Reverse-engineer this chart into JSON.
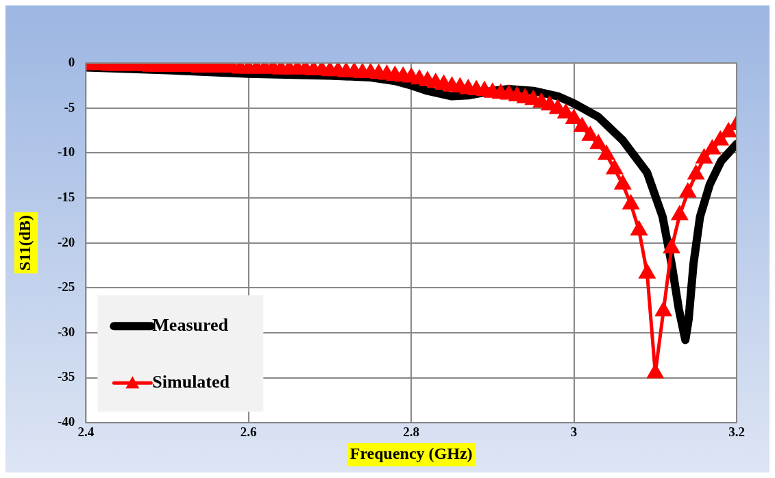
{
  "chart_data": {
    "type": "line",
    "xlabel": "Frequency (GHz)",
    "ylabel": "S11(dB)",
    "xlim": [
      2.4,
      3.2
    ],
    "xticks": [
      2.4,
      2.6,
      2.8,
      3,
      3.2
    ],
    "ylim": [
      -40,
      0
    ],
    "yticks": [
      -40,
      -35,
      -30,
      -25,
      -20,
      -15,
      -10,
      -5,
      0
    ],
    "grid": true,
    "legend": "bottom left",
    "series": [
      {
        "name": "Measured",
        "color": "#000000",
        "marker": "none",
        "x": [
          2.4,
          2.5,
          2.6,
          2.7,
          2.75,
          2.78,
          2.8,
          2.82,
          2.85,
          2.87,
          2.9,
          2.92,
          2.95,
          2.98,
          3.0,
          3.03,
          3.06,
          3.09,
          3.109,
          3.12,
          3.129,
          3.137,
          3.141,
          3.147,
          3.155,
          3.167,
          3.181,
          3.196,
          3.2
        ],
        "values": [
          -0.5,
          -0.8,
          -1.2,
          -1.4,
          -1.6,
          -2.0,
          -2.5,
          -3.1,
          -3.7,
          -3.6,
          -3.1,
          -2.9,
          -3.1,
          -3.7,
          -4.5,
          -6.0,
          -8.6,
          -12.2,
          -17.1,
          -22.3,
          -27.4,
          -30.8,
          -28.5,
          -22.3,
          -17.1,
          -13.5,
          -10.9,
          -9.4,
          -9.0
        ]
      },
      {
        "name": "Simulated",
        "color": "#ff0000",
        "marker": "triangle",
        "x": [
          2.4,
          2.41,
          2.42,
          2.43,
          2.44,
          2.45,
          2.46,
          2.47,
          2.48,
          2.49,
          2.5,
          2.51,
          2.52,
          2.53,
          2.54,
          2.55,
          2.56,
          2.57,
          2.58,
          2.59,
          2.6,
          2.61,
          2.62,
          2.63,
          2.64,
          2.65,
          2.66,
          2.67,
          2.68,
          2.69,
          2.7,
          2.71,
          2.72,
          2.73,
          2.74,
          2.75,
          2.76,
          2.77,
          2.78,
          2.79,
          2.8,
          2.81,
          2.82,
          2.83,
          2.84,
          2.85,
          2.86,
          2.87,
          2.88,
          2.89,
          2.9,
          2.91,
          2.92,
          2.93,
          2.94,
          2.95,
          2.96,
          2.97,
          2.98,
          2.99,
          3.0,
          3.01,
          3.02,
          3.03,
          3.04,
          3.05,
          3.06,
          3.07,
          3.08,
          3.09,
          3.1,
          3.11,
          3.12,
          3.13,
          3.14,
          3.15,
          3.16,
          3.17,
          3.18,
          3.19,
          3.2
        ],
        "values": [
          -0.2,
          -0.2,
          -0.2,
          -0.3,
          -0.3,
          -0.3,
          -0.3,
          -0.3,
          -0.4,
          -0.4,
          -0.4,
          -0.4,
          -0.4,
          -0.4,
          -0.5,
          -0.5,
          -0.5,
          -0.5,
          -0.5,
          -0.6,
          -0.6,
          -0.6,
          -0.6,
          -0.6,
          -0.7,
          -0.7,
          -0.7,
          -0.7,
          -0.8,
          -0.8,
          -0.9,
          -0.9,
          -1.0,
          -1.0,
          -1.1,
          -1.1,
          -1.2,
          -1.3,
          -1.4,
          -1.5,
          -1.6,
          -1.8,
          -2.0,
          -2.2,
          -2.4,
          -2.6,
          -2.7,
          -2.9,
          -3.0,
          -3.1,
          -3.3,
          -3.4,
          -3.5,
          -3.7,
          -3.9,
          -4.1,
          -4.4,
          -4.7,
          -5.1,
          -5.6,
          -6.2,
          -7.1,
          -8.1,
          -9.0,
          -10.2,
          -11.8,
          -13.5,
          -15.7,
          -18.6,
          -23.4,
          -34.5,
          -27.6,
          -20.6,
          -16.9,
          -14.4,
          -12.4,
          -10.6,
          -9.6,
          -8.6,
          -7.7,
          -6.9
        ]
      }
    ]
  }
}
